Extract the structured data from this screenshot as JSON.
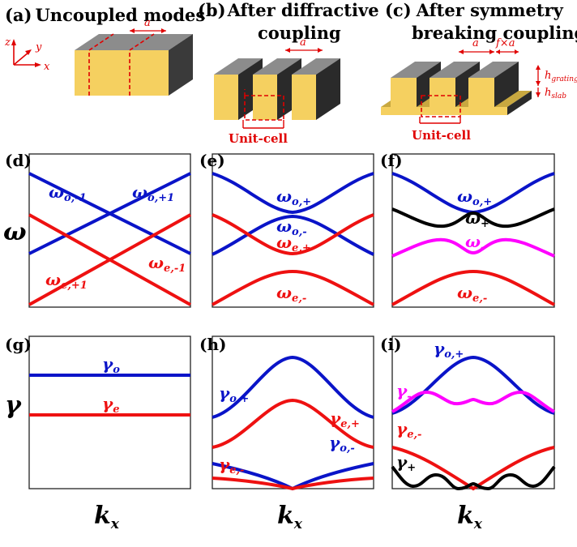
{
  "panel_titles": {
    "a": {
      "tag": "(a)",
      "line1": "Uncoupled modes"
    },
    "b": {
      "tag": "(b)",
      "line1": "After diffractive",
      "line2": "coupling"
    },
    "c": {
      "tag": "(c)",
      "line1": "After symmetry",
      "line2": "breaking coupling"
    }
  },
  "schematic_labels": {
    "axis_z": "z",
    "axis_y": "y",
    "axis_x": "x",
    "period_a": "a",
    "fill_fa": "f×a",
    "h_grating_main": "h",
    "h_grating_sub": "grating",
    "h_slab_main": "h",
    "h_slab_sub": "slab",
    "unit_cell": "Unit-cell"
  },
  "panel_tags": {
    "d": "(d)",
    "e": "(e)",
    "f": "(f)",
    "g": "(g)",
    "h": "(h)",
    "i": "(i)"
  },
  "axis_labels": {
    "omega": "ω",
    "gamma": "γ",
    "kx_main": "k",
    "kx_sub": "x"
  },
  "curve_labels": {
    "d": {
      "o_minus": [
        "ω",
        "o,-1"
      ],
      "o_plus": [
        "ω",
        "o,+1"
      ],
      "e_plus": [
        "ω",
        "e,+1"
      ],
      "e_minus": [
        "ω",
        "e,-1"
      ]
    },
    "e": {
      "o_plus": [
        "ω",
        "o,+"
      ],
      "o_minus": [
        "ω",
        "o,-"
      ],
      "e_plus": [
        "ω",
        "e,+"
      ],
      "e_minus": [
        "ω",
        "e,-"
      ]
    },
    "f": {
      "o_plus": [
        "ω",
        "o,+"
      ],
      "plus": [
        "ω",
        "+"
      ],
      "minus": [
        "ω",
        "-"
      ],
      "e_minus": [
        "ω",
        "e,-"
      ]
    },
    "g": {
      "o": [
        "γ",
        "o"
      ],
      "e": [
        "γ",
        "e"
      ]
    },
    "h": {
      "o_plus": [
        "γ",
        "o,+"
      ],
      "e_plus": [
        "γ",
        "e,+"
      ],
      "o_minus": [
        "γ",
        "o,-"
      ],
      "e_minus": [
        "γ",
        "e,-"
      ]
    },
    "i": {
      "o_plus": [
        "γ",
        "o,+"
      ],
      "minus": [
        "γ",
        "-"
      ],
      "e_minus": [
        "γ",
        "e,-"
      ],
      "plus": [
        "γ",
        "+"
      ]
    }
  },
  "colors": {
    "odd": "#0a14c8",
    "even": "#ee1111",
    "plus": "#000000",
    "minus": "#ff00ff",
    "gold": "#f5d060",
    "gray": "#8c8c8c"
  }
}
